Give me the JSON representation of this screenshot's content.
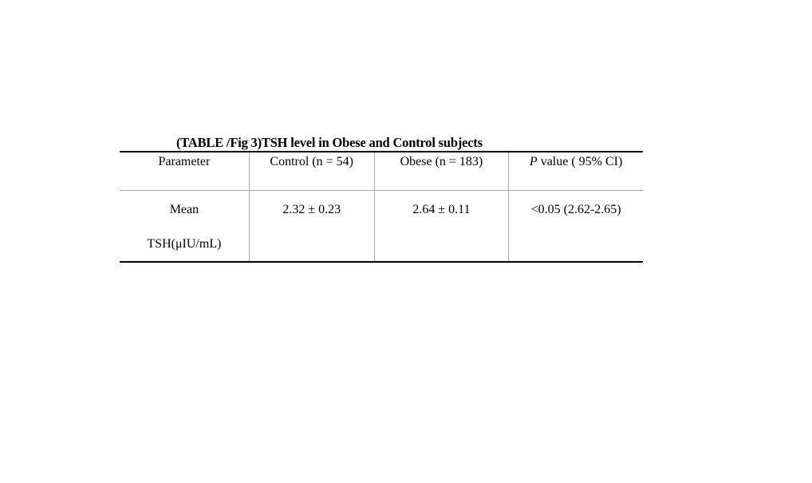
{
  "title": "(TABLE /Fig 3)TSH level in Obese and Control subjects",
  "table": {
    "headers": {
      "parameter": "Parameter",
      "control": "Control (n = 54)",
      "obese": "Obese (n = 183)",
      "p_symbol": "P",
      "p_rest": " value ( 95% CI)"
    },
    "rows": [
      {
        "parameter_line1": "Mean",
        "parameter_line2": "TSH(μIU/mL)",
        "control": "2.32 ± 0.23",
        "obese": "2.64 ± 0.11",
        "p_value": "<0.05 (2.62-2.65)"
      }
    ]
  }
}
